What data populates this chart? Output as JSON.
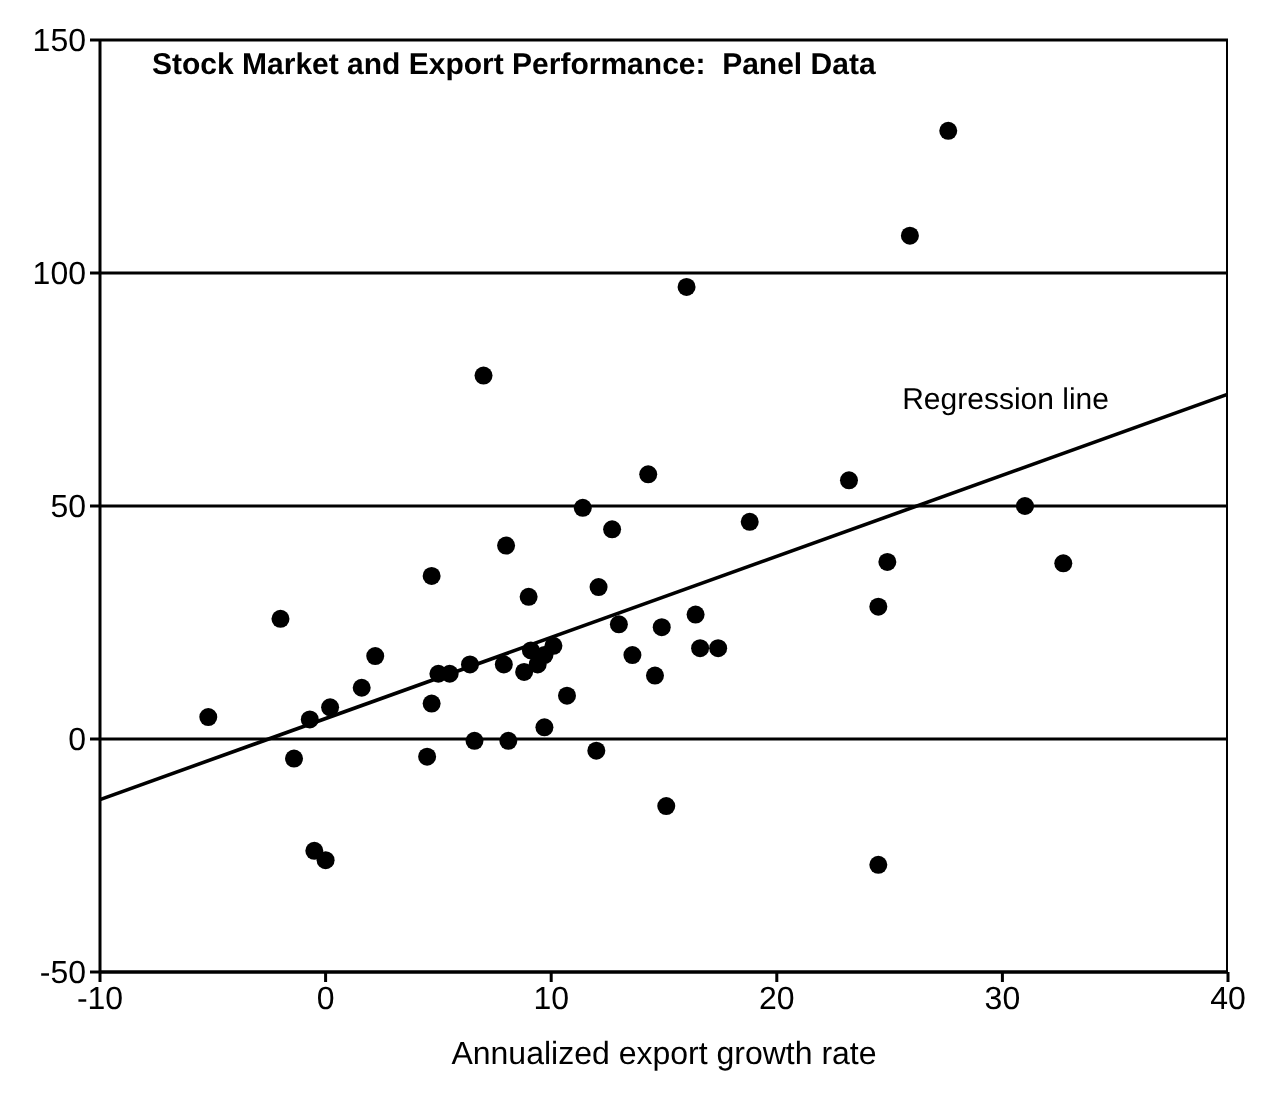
{
  "chart_data": {
    "type": "scatter",
    "title": "Stock Market and Export Performance:  Panel Data",
    "xlabel": "Annualized export growth rate",
    "xlim": [
      -10,
      40
    ],
    "xticks": [
      -10,
      0,
      10,
      20,
      30,
      40
    ],
    "ylim": [
      -50,
      150
    ],
    "yticks": [
      -50,
      0,
      50,
      100,
      150
    ],
    "grid": "y",
    "marker": "circle",
    "series": [
      {
        "color": "#000000",
        "x": [
          -5.2,
          -2.0,
          -1.4,
          -0.7,
          -0.5,
          0.0,
          0.2,
          1.6,
          2.2,
          4.7,
          4.7,
          4.5,
          5.0,
          5.5,
          6.4,
          6.6,
          7.0,
          7.9,
          8.0,
          8.1,
          8.8,
          9.0,
          9.1,
          9.4,
          9.7,
          9.7,
          10.1,
          10.7,
          11.4,
          12.0,
          12.1,
          12.7,
          13.0,
          13.6,
          14.3,
          14.6,
          14.9,
          15.1,
          16.0,
          16.4,
          16.6,
          17.4,
          18.8,
          23.2,
          24.5,
          24.5,
          24.9,
          25.9,
          27.6,
          31.0,
          32.7
        ],
        "values": [
          4.7,
          25.8,
          -4.2,
          4.2,
          -24,
          -26,
          6.8,
          11,
          17.8,
          35,
          7.6,
          -3.8,
          14,
          14,
          16,
          -0.4,
          78,
          16,
          41.5,
          -0.4,
          14.4,
          30.5,
          19,
          16,
          18,
          2.5,
          20,
          9.3,
          49.6,
          -2.5,
          32.6,
          45,
          24.6,
          18,
          56.8,
          13.6,
          24,
          -14.4,
          97,
          26.7,
          19.5,
          19.5,
          46.6,
          55.5,
          -27,
          28.4,
          38,
          108,
          130.5,
          50,
          37.7
        ]
      },
      {
        "type": "line",
        "name": "Regression line",
        "color": "#000000",
        "marker": "none",
        "x": [
          -10,
          40
        ],
        "values": [
          -13,
          74
        ]
      }
    ]
  }
}
